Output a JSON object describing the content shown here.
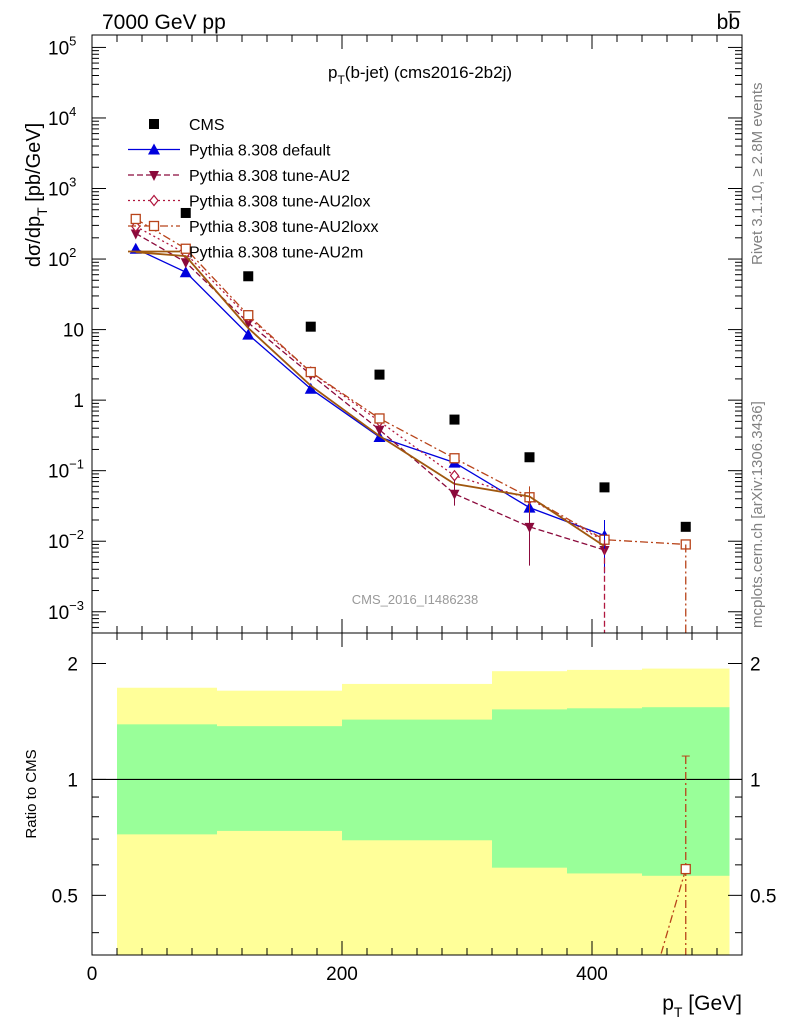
{
  "header": {
    "left": "7000 GeV pp",
    "right": "bb̅"
  },
  "side_labels": {
    "rivet": "Rivet 3.1.10, ≥ 2.8M events",
    "mcplots": "mcplots.cern.ch [arXiv:1306.3436]"
  },
  "colors": {
    "cms": "#000000",
    "default": "#0000dd",
    "au2": "#8b0a3c",
    "au2lox": "#b0173f",
    "au2loxx": "#b8441a",
    "au2m": "#a0580f",
    "band_inner": "#99ff99",
    "band_outer": "#ffff99"
  },
  "chart_data": [
    {
      "type": "line",
      "title": "p_T(b-jet) (cms2016-2b2j)",
      "title_main": "p",
      "title_sub": "T",
      "title_rest": "(b-jet) (cms2016-2b2j)",
      "ylabel": "dσ/dp_T [pb/GeV]",
      "ylabel_parts": {
        "a": "dσ/dp",
        "sub": "T",
        "b": " [pb/GeV]"
      },
      "yscale": "log",
      "ylim": [
        0.0005,
        150000
      ],
      "xlim": [
        0,
        520
      ],
      "watermark": "CMS_2016_I1486238",
      "ytick_labels": [
        {
          "v": 0.001,
          "base": "10",
          "exp": "−3"
        },
        {
          "v": 0.01,
          "base": "10",
          "exp": "−2"
        },
        {
          "v": 0.1,
          "base": "10",
          "exp": "−1"
        },
        {
          "v": 1,
          "base": "1",
          "exp": ""
        },
        {
          "v": 10,
          "base": "10",
          "exp": ""
        },
        {
          "v": 100,
          "base": "10",
          "exp": "2"
        },
        {
          "v": 1000,
          "base": "10",
          "exp": "3"
        },
        {
          "v": 10000,
          "base": "10",
          "exp": "4"
        },
        {
          "v": 100000,
          "base": "10",
          "exp": "5"
        }
      ],
      "series": [
        {
          "name": "CMS",
          "key": "cms",
          "marker": "square",
          "x": [
            75,
            125,
            175,
            230,
            290,
            350,
            410,
            475
          ],
          "y": [
            450,
            57,
            11,
            2.3,
            0.53,
            0.155,
            0.058,
            0.016
          ]
        },
        {
          "name": "Pythia 8.308 default",
          "key": "default",
          "marker": "triangle-up",
          "dash": "",
          "x": [
            35,
            75,
            125,
            175,
            230,
            290,
            350,
            410
          ],
          "y": [
            140,
            65,
            8.5,
            1.45,
            0.3,
            0.13,
            0.03,
            0.012
          ]
        },
        {
          "name": "Pythia 8.308 tune-AU2",
          "key": "au2",
          "marker": "triangle-down",
          "dash": "6,3",
          "x": [
            35,
            75,
            125,
            175,
            230,
            290,
            350,
            410
          ],
          "y": [
            230,
            90,
            12.5,
            2.3,
            0.38,
            0.047,
            0.016,
            0.0075
          ]
        },
        {
          "name": "Pythia 8.308 tune-AU2lox",
          "key": "au2lox",
          "marker": "diamond-open",
          "dash": "2,3",
          "x": [
            35,
            75,
            125,
            175,
            230,
            290,
            350,
            410
          ],
          "y": [
            290,
            120,
            15,
            2.5,
            0.5,
            0.085,
            0.04,
            0.01
          ]
        },
        {
          "name": "Pythia 8.308 tune-AU2loxx",
          "key": "au2loxx",
          "marker": "square-open",
          "dash": "8,3,2,3",
          "x": [
            35,
            75,
            125,
            175,
            230,
            290,
            350,
            410,
            475
          ],
          "y": [
            370,
            140,
            16,
            2.5,
            0.55,
            0.15,
            0.042,
            0.0105,
            0.009
          ]
        },
        {
          "name": "Pythia 8.308 tune-AU2m",
          "key": "au2m",
          "marker": "none",
          "dash": "",
          "x": [
            35,
            75,
            125,
            175,
            230,
            290,
            350,
            410
          ],
          "y": [
            125,
            110,
            10.5,
            1.6,
            0.31,
            0.065,
            0.043,
            0.0085
          ]
        }
      ]
    },
    {
      "type": "area",
      "ylabel": "Ratio to CMS",
      "yscale": "log",
      "ylim": [
        0.35,
        2.4
      ],
      "xlim": [
        0,
        520
      ],
      "xlabel_main": "p",
      "xlabel_sub": "T",
      "xlabel_rest": " [GeV]",
      "xtick_labels": [
        "0",
        "200",
        "400"
      ],
      "ytick_labels": [
        "0.5",
        "1",
        "2"
      ],
      "bands": {
        "edges": [
          20,
          100,
          200,
          320,
          380,
          440,
          510
        ],
        "inner_lo": [
          0.72,
          0.735,
          0.695,
          0.59,
          0.57,
          0.562
        ],
        "inner_hi": [
          1.39,
          1.375,
          1.43,
          1.52,
          1.53,
          1.54
        ],
        "outer_lo": [
          0.35,
          0.35,
          0.35,
          0.35,
          0.35,
          0.35
        ],
        "outer_hi": [
          1.73,
          1.7,
          1.77,
          1.91,
          1.925,
          1.94
        ]
      },
      "ratio_point": {
        "x": 475,
        "y": 0.585,
        "err_hi": 1.15
      }
    }
  ]
}
